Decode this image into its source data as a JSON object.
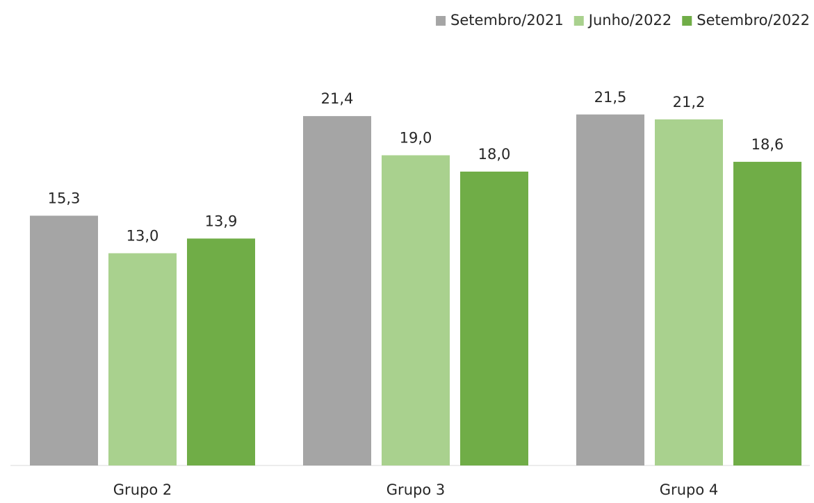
{
  "chart_data": {
    "type": "bar",
    "categories": [
      "Grupo 2",
      "Grupo 3",
      "Grupo 4"
    ],
    "series": [
      {
        "name": "Setembro/2021",
        "color": "#a5a5a5",
        "values": [
          15.3,
          21.4,
          21.5
        ],
        "value_labels": [
          "15,3",
          "21,4",
          "21,5"
        ]
      },
      {
        "name": "Junho/2022",
        "color": "#a9d18e",
        "values": [
          13.0,
          19.0,
          21.2
        ],
        "value_labels": [
          "13,0",
          "19,0",
          "21,2"
        ]
      },
      {
        "name": "Setembro/2022",
        "color": "#70ad47",
        "values": [
          13.9,
          18.0,
          18.6
        ],
        "value_labels": [
          "13,9",
          "18,0",
          "18,6"
        ]
      }
    ],
    "legend": "top-right"
  }
}
